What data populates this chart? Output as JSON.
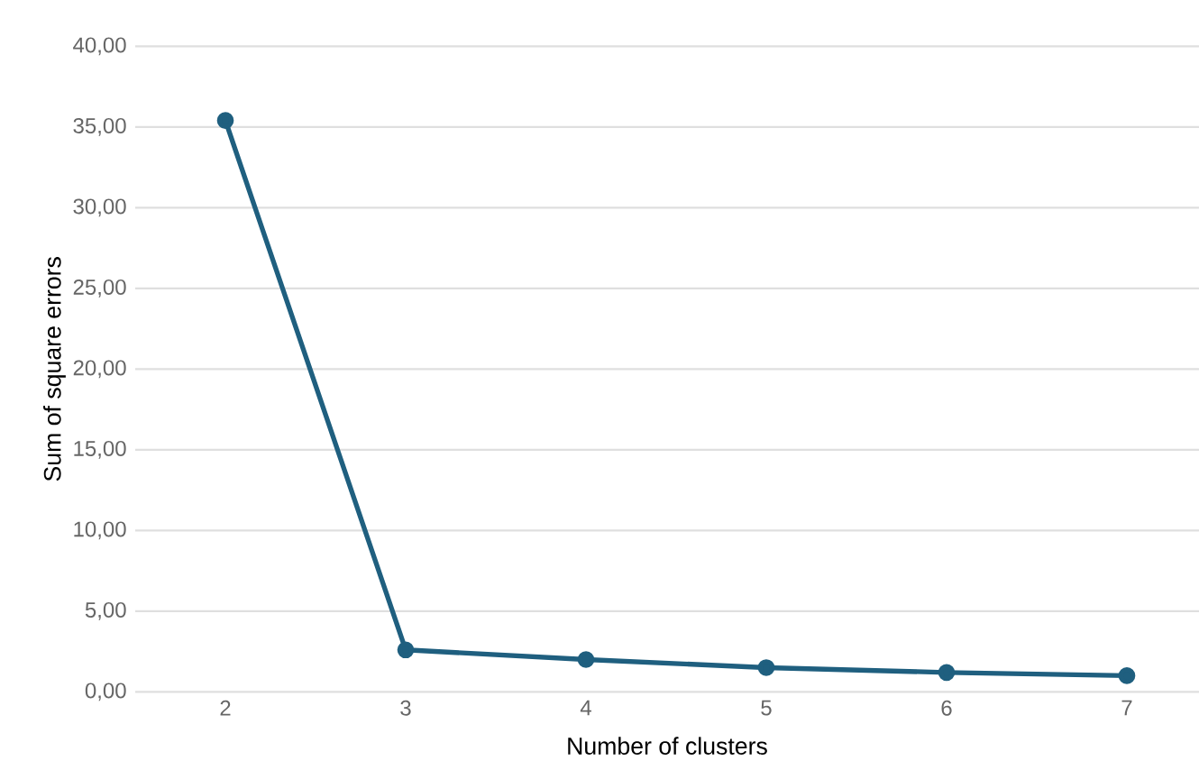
{
  "chart_data": {
    "type": "line",
    "xlabel": "Number of clusters",
    "ylabel": "Sum of square errors",
    "categories": [
      "2",
      "3",
      "4",
      "5",
      "6",
      "7"
    ],
    "series": [
      {
        "color": "#1f5f7f",
        "values": [
          35.4,
          2.6,
          2.0,
          1.5,
          1.2,
          1.0
        ]
      }
    ],
    "ylim": [
      0,
      40
    ],
    "yticks": [
      {
        "value": 0,
        "label": "0,00"
      },
      {
        "value": 5,
        "label": "5,00"
      },
      {
        "value": 10,
        "label": "10,00"
      },
      {
        "value": 15,
        "label": "15,00"
      },
      {
        "value": 20,
        "label": "20,00"
      },
      {
        "value": 25,
        "label": "25,00"
      },
      {
        "value": 30,
        "label": "30,00"
      },
      {
        "value": 35,
        "label": "35,00"
      },
      {
        "value": 40,
        "label": "40,00"
      }
    ],
    "grid": "y",
    "marker": "circle",
    "line_style": "solid"
  }
}
